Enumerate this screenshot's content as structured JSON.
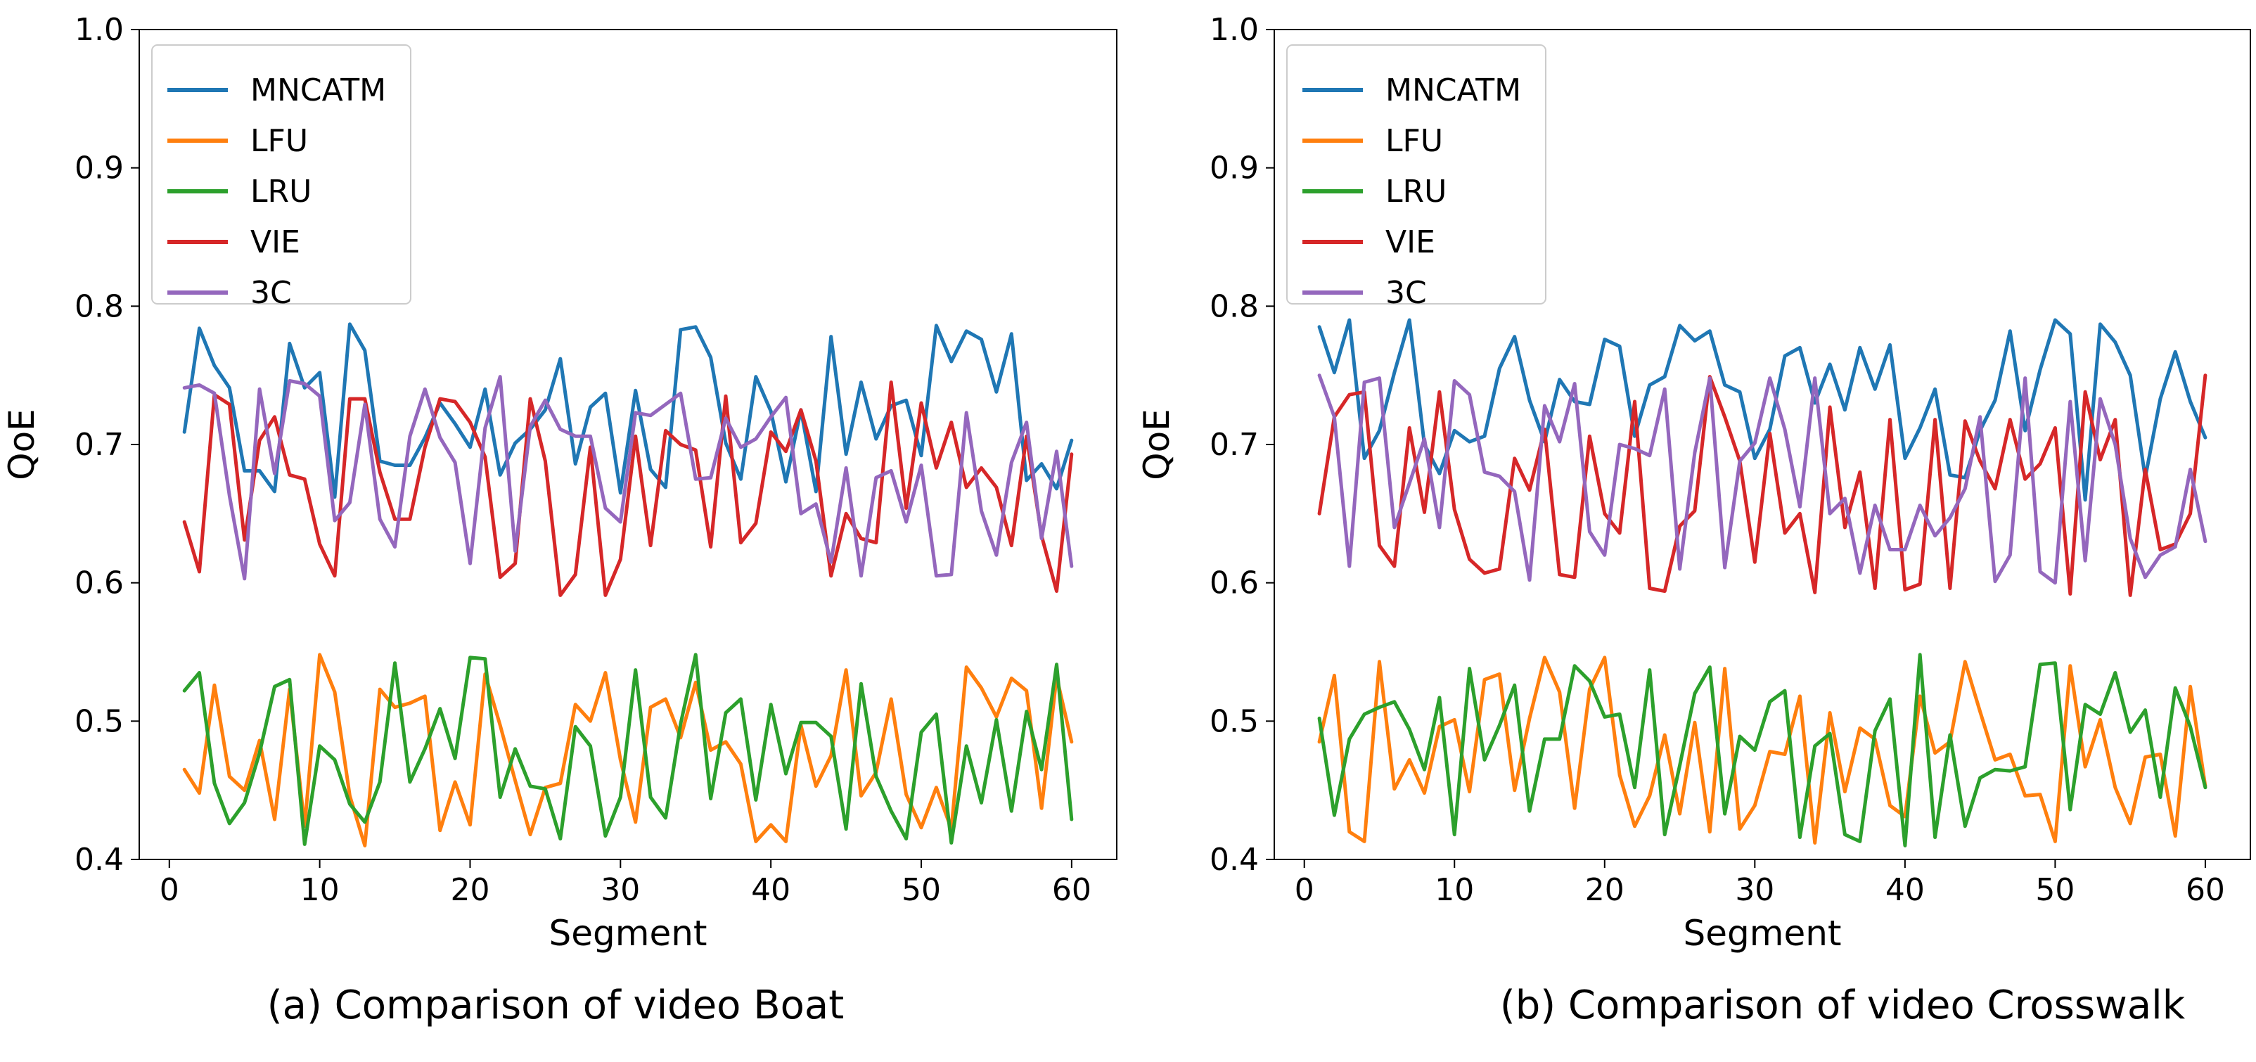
{
  "chart_data": [
    {
      "type": "line",
      "caption": "(a) Comparison of video Boat",
      "title": "",
      "xlabel": "Segment",
      "ylabel": "QoE",
      "xlim": [
        -2,
        63
      ],
      "ylim": [
        0.4,
        1.0
      ],
      "xticks": [
        0,
        10,
        20,
        30,
        40,
        50,
        60
      ],
      "yticks": [
        0.4,
        0.5,
        0.6,
        0.7,
        0.8,
        0.9,
        1.0
      ],
      "xtick_labels": [
        "0",
        "10",
        "20",
        "30",
        "40",
        "50",
        "60"
      ],
      "ytick_labels": [
        "0.4",
        "0.5",
        "0.6",
        "0.7",
        "0.8",
        "0.9",
        "1.0"
      ],
      "legend_position": "top-left",
      "grid": false,
      "x": [
        1,
        2,
        3,
        4,
        5,
        6,
        7,
        8,
        9,
        10,
        11,
        12,
        13,
        14,
        15,
        16,
        17,
        18,
        19,
        20,
        21,
        22,
        23,
        24,
        25,
        26,
        27,
        28,
        29,
        30,
        31,
        32,
        33,
        34,
        35,
        36,
        37,
        38,
        39,
        40,
        41,
        42,
        43,
        44,
        45,
        46,
        47,
        48,
        49,
        50,
        51,
        52,
        53,
        54,
        55,
        56,
        57,
        58,
        59,
        60
      ],
      "series": [
        {
          "name": "MNCATM",
          "color": "#1f77b4",
          "values": [
            0.709,
            0.784,
            0.757,
            0.741,
            0.681,
            0.681,
            0.666,
            0.773,
            0.741,
            0.752,
            0.662,
            0.787,
            0.768,
            0.688,
            0.685,
            0.685,
            0.705,
            0.73,
            0.715,
            0.698,
            0.74,
            0.678,
            0.701,
            0.711,
            0.725,
            0.762,
            0.686,
            0.727,
            0.737,
            0.665,
            0.739,
            0.682,
            0.669,
            0.783,
            0.785,
            0.763,
            0.701,
            0.675,
            0.749,
            0.724,
            0.673,
            0.725,
            0.666,
            0.778,
            0.693,
            0.745,
            0.704,
            0.728,
            0.732,
            0.692,
            0.786,
            0.76,
            0.782,
            0.776,
            0.738,
            0.78,
            0.674,
            0.686,
            0.668,
            0.703
          ]
        },
        {
          "name": "LFU",
          "color": "#ff7f0e",
          "values": [
            0.465,
            0.448,
            0.526,
            0.46,
            0.45,
            0.486,
            0.429,
            0.523,
            0.424,
            0.548,
            0.521,
            0.446,
            0.41,
            0.523,
            0.51,
            0.513,
            0.518,
            0.421,
            0.456,
            0.425,
            0.534,
            0.497,
            0.457,
            0.418,
            0.452,
            0.455,
            0.512,
            0.5,
            0.535,
            0.472,
            0.427,
            0.51,
            0.516,
            0.488,
            0.528,
            0.479,
            0.485,
            0.469,
            0.413,
            0.425,
            0.413,
            0.497,
            0.453,
            0.475,
            0.537,
            0.446,
            0.463,
            0.516,
            0.447,
            0.423,
            0.452,
            0.422,
            0.539,
            0.524,
            0.503,
            0.531,
            0.522,
            0.437,
            0.532,
            0.485
          ]
        },
        {
          "name": "LRU",
          "color": "#2ca02c",
          "values": [
            0.522,
            0.535,
            0.455,
            0.426,
            0.441,
            0.477,
            0.525,
            0.53,
            0.411,
            0.482,
            0.472,
            0.44,
            0.427,
            0.456,
            0.542,
            0.456,
            0.48,
            0.509,
            0.473,
            0.546,
            0.545,
            0.445,
            0.48,
            0.453,
            0.451,
            0.415,
            0.496,
            0.482,
            0.417,
            0.445,
            0.537,
            0.445,
            0.43,
            0.498,
            0.548,
            0.444,
            0.506,
            0.516,
            0.443,
            0.512,
            0.462,
            0.499,
            0.499,
            0.489,
            0.422,
            0.527,
            0.46,
            0.435,
            0.415,
            0.492,
            0.505,
            0.412,
            0.482,
            0.441,
            0.501,
            0.435,
            0.507,
            0.465,
            0.541,
            0.429
          ]
        },
        {
          "name": "VIE",
          "color": "#d62728",
          "values": [
            0.644,
            0.608,
            0.736,
            0.729,
            0.631,
            0.703,
            0.72,
            0.678,
            0.675,
            0.628,
            0.605,
            0.733,
            0.733,
            0.68,
            0.646,
            0.646,
            0.698,
            0.733,
            0.731,
            0.716,
            0.691,
            0.604,
            0.614,
            0.733,
            0.688,
            0.591,
            0.606,
            0.698,
            0.591,
            0.617,
            0.706,
            0.627,
            0.71,
            0.7,
            0.696,
            0.626,
            0.735,
            0.629,
            0.643,
            0.709,
            0.695,
            0.725,
            0.688,
            0.605,
            0.65,
            0.632,
            0.629,
            0.745,
            0.654,
            0.73,
            0.683,
            0.716,
            0.669,
            0.683,
            0.669,
            0.627,
            0.706,
            0.634,
            0.594,
            0.693
          ]
        },
        {
          "name": "3C",
          "color": "#9467bd",
          "values": [
            0.741,
            0.743,
            0.737,
            0.663,
            0.603,
            0.74,
            0.679,
            0.746,
            0.744,
            0.735,
            0.645,
            0.658,
            0.729,
            0.646,
            0.626,
            0.706,
            0.74,
            0.705,
            0.687,
            0.614,
            0.712,
            0.749,
            0.623,
            0.713,
            0.732,
            0.711,
            0.706,
            0.706,
            0.654,
            0.644,
            0.723,
            0.721,
            0.729,
            0.737,
            0.675,
            0.676,
            0.719,
            0.698,
            0.704,
            0.72,
            0.734,
            0.65,
            0.657,
            0.615,
            0.683,
            0.605,
            0.676,
            0.681,
            0.644,
            0.685,
            0.605,
            0.606,
            0.723,
            0.652,
            0.62,
            0.687,
            0.716,
            0.632,
            0.695,
            0.612
          ]
        }
      ]
    },
    {
      "type": "line",
      "caption": "(b) Comparison of video Crosswalk",
      "title": "",
      "xlabel": "Segment",
      "ylabel": "QoE",
      "xlim": [
        -2,
        63
      ],
      "ylim": [
        0.4,
        1.0
      ],
      "xticks": [
        0,
        10,
        20,
        30,
        40,
        50,
        60
      ],
      "yticks": [
        0.4,
        0.5,
        0.6,
        0.7,
        0.8,
        0.9,
        1.0
      ],
      "xtick_labels": [
        "0",
        "10",
        "20",
        "30",
        "40",
        "50",
        "60"
      ],
      "ytick_labels": [
        "0.4",
        "0.5",
        "0.6",
        "0.7",
        "0.8",
        "0.9",
        "1.0"
      ],
      "legend_position": "top-left",
      "grid": false,
      "x": [
        1,
        2,
        3,
        4,
        5,
        6,
        7,
        8,
        9,
        10,
        11,
        12,
        13,
        14,
        15,
        16,
        17,
        18,
        19,
        20,
        21,
        22,
        23,
        24,
        25,
        26,
        27,
        28,
        29,
        30,
        31,
        32,
        33,
        34,
        35,
        36,
        37,
        38,
        39,
        40,
        41,
        42,
        43,
        44,
        45,
        46,
        47,
        48,
        49,
        50,
        51,
        52,
        53,
        54,
        55,
        56,
        57,
        58,
        59,
        60
      ],
      "series": [
        {
          "name": "MNCATM",
          "color": "#1f77b4",
          "values": [
            0.785,
            0.752,
            0.79,
            0.69,
            0.71,
            0.752,
            0.79,
            0.7,
            0.679,
            0.71,
            0.702,
            0.706,
            0.755,
            0.778,
            0.732,
            0.702,
            0.747,
            0.731,
            0.729,
            0.776,
            0.771,
            0.706,
            0.743,
            0.749,
            0.786,
            0.775,
            0.782,
            0.743,
            0.738,
            0.69,
            0.711,
            0.764,
            0.77,
            0.73,
            0.758,
            0.725,
            0.77,
            0.74,
            0.772,
            0.69,
            0.712,
            0.74,
            0.678,
            0.676,
            0.71,
            0.732,
            0.782,
            0.71,
            0.754,
            0.79,
            0.78,
            0.66,
            0.787,
            0.774,
            0.75,
            0.676,
            0.733,
            0.767,
            0.731,
            0.705
          ]
        },
        {
          "name": "LFU",
          "color": "#ff7f0e",
          "values": [
            0.485,
            0.533,
            0.42,
            0.413,
            0.543,
            0.451,
            0.472,
            0.448,
            0.496,
            0.501,
            0.449,
            0.53,
            0.534,
            0.45,
            0.502,
            0.546,
            0.521,
            0.437,
            0.523,
            0.546,
            0.461,
            0.424,
            0.446,
            0.49,
            0.433,
            0.499,
            0.42,
            0.538,
            0.422,
            0.439,
            0.478,
            0.476,
            0.518,
            0.412,
            0.506,
            0.449,
            0.495,
            0.487,
            0.439,
            0.431,
            0.518,
            0.477,
            0.485,
            0.543,
            0.507,
            0.472,
            0.476,
            0.446,
            0.447,
            0.413,
            0.54,
            0.467,
            0.501,
            0.452,
            0.426,
            0.474,
            0.476,
            0.417,
            0.525,
            0.453
          ]
        },
        {
          "name": "LRU",
          "color": "#2ca02c",
          "values": [
            0.502,
            0.432,
            0.487,
            0.505,
            0.51,
            0.514,
            0.494,
            0.465,
            0.517,
            0.418,
            0.538,
            0.472,
            0.497,
            0.526,
            0.435,
            0.487,
            0.487,
            0.54,
            0.529,
            0.503,
            0.505,
            0.452,
            0.537,
            0.418,
            0.468,
            0.52,
            0.539,
            0.433,
            0.489,
            0.479,
            0.514,
            0.522,
            0.416,
            0.482,
            0.491,
            0.418,
            0.413,
            0.493,
            0.516,
            0.41,
            0.548,
            0.416,
            0.49,
            0.424,
            0.459,
            0.465,
            0.464,
            0.467,
            0.541,
            0.542,
            0.436,
            0.512,
            0.505,
            0.535,
            0.492,
            0.508,
            0.445,
            0.524,
            0.496,
            0.452
          ]
        },
        {
          "name": "VIE",
          "color": "#d62728",
          "values": [
            0.65,
            0.72,
            0.736,
            0.738,
            0.627,
            0.612,
            0.712,
            0.651,
            0.738,
            0.653,
            0.617,
            0.607,
            0.61,
            0.69,
            0.667,
            0.711,
            0.606,
            0.604,
            0.706,
            0.65,
            0.636,
            0.731,
            0.596,
            0.594,
            0.641,
            0.652,
            0.749,
            0.72,
            0.688,
            0.615,
            0.708,
            0.636,
            0.65,
            0.593,
            0.727,
            0.64,
            0.68,
            0.596,
            0.718,
            0.595,
            0.599,
            0.718,
            0.596,
            0.717,
            0.688,
            0.668,
            0.718,
            0.675,
            0.686,
            0.712,
            0.592,
            0.738,
            0.689,
            0.718,
            0.591,
            0.682,
            0.624,
            0.628,
            0.65,
            0.75
          ]
        },
        {
          "name": "3C",
          "color": "#9467bd",
          "values": [
            0.75,
            0.72,
            0.612,
            0.745,
            0.748,
            0.64,
            0.672,
            0.704,
            0.64,
            0.746,
            0.736,
            0.68,
            0.677,
            0.666,
            0.602,
            0.728,
            0.702,
            0.744,
            0.637,
            0.62,
            0.7,
            0.697,
            0.692,
            0.74,
            0.61,
            0.694,
            0.748,
            0.611,
            0.688,
            0.701,
            0.748,
            0.711,
            0.655,
            0.748,
            0.65,
            0.661,
            0.607,
            0.656,
            0.624,
            0.624,
            0.656,
            0.634,
            0.647,
            0.668,
            0.72,
            0.601,
            0.62,
            0.748,
            0.608,
            0.6,
            0.731,
            0.616,
            0.733,
            0.7,
            0.632,
            0.604,
            0.62,
            0.626,
            0.682,
            0.63
          ]
        }
      ]
    }
  ]
}
